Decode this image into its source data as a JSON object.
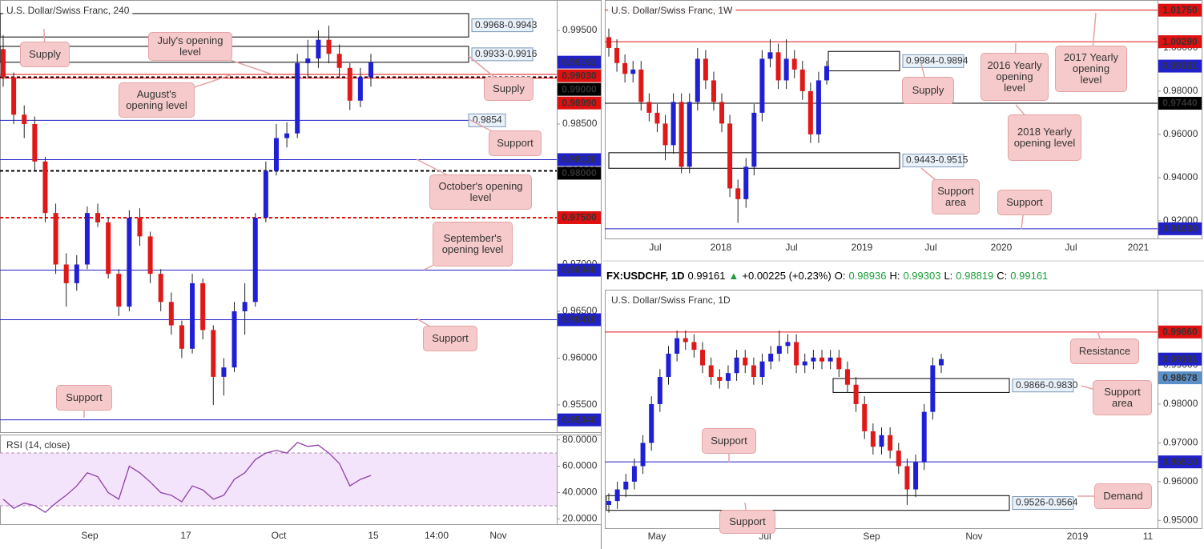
{
  "chart_data": [
    {
      "type": "candlestick",
      "title": "U.S. Dollar/Swiss Franc, 240",
      "up_color": "#1f1fd6",
      "down_color": "#e01818",
      "ylim": [
        0.95209,
        0.99825
      ],
      "yticks": [
        {
          "value": 0.995,
          "label": "0.99500"
        },
        {
          "value": 0.99,
          "label": "0.99000"
        },
        {
          "value": 0.985,
          "label": "0.98500"
        },
        {
          "value": 0.98,
          "label": "0.98000"
        },
        {
          "value": 0.975,
          "label": "0.97500"
        },
        {
          "value": 0.97,
          "label": "0.97000"
        },
        {
          "value": 0.965,
          "label": "0.96500"
        },
        {
          "value": 0.96,
          "label": "0.96000"
        },
        {
          "value": 0.955,
          "label": "0.95500"
        }
      ],
      "x_labels": [
        "Sep",
        "17",
        "Oct",
        "15",
        "14:00",
        "Nov"
      ],
      "ohlc": [
        [
          0.993,
          0.9945,
          0.989,
          0.99
        ],
        [
          0.99,
          0.9905,
          0.985,
          0.986
        ],
        [
          0.986,
          0.987,
          0.9835,
          0.985
        ],
        [
          0.985,
          0.9858,
          0.98,
          0.981
        ],
        [
          0.981,
          0.9815,
          0.9745,
          0.9755
        ],
        [
          0.9755,
          0.9765,
          0.969,
          0.97
        ],
        [
          0.97,
          0.9712,
          0.9655,
          0.968
        ],
        [
          0.968,
          0.971,
          0.9672,
          0.97
        ],
        [
          0.97,
          0.9762,
          0.9695,
          0.9755
        ],
        [
          0.9755,
          0.9765,
          0.974,
          0.9745
        ],
        [
          0.9745,
          0.975,
          0.9685,
          0.969
        ],
        [
          0.969,
          0.9695,
          0.9645,
          0.9655
        ],
        [
          0.9655,
          0.9758,
          0.965,
          0.975
        ],
        [
          0.975,
          0.976,
          0.972,
          0.973
        ],
        [
          0.973,
          0.9735,
          0.968,
          0.969
        ],
        [
          0.969,
          0.9695,
          0.965,
          0.966
        ],
        [
          0.966,
          0.967,
          0.9625,
          0.9635
        ],
        [
          0.9635,
          0.964,
          0.96,
          0.961
        ],
        [
          0.961,
          0.969,
          0.9605,
          0.968
        ],
        [
          0.968,
          0.9685,
          0.962,
          0.963
        ],
        [
          0.963,
          0.9635,
          0.955,
          0.958
        ],
        [
          0.958,
          0.96,
          0.956,
          0.959
        ],
        [
          0.959,
          0.966,
          0.9585,
          0.965
        ],
        [
          0.965,
          0.968,
          0.9625,
          0.966
        ],
        [
          0.966,
          0.9755,
          0.9655,
          0.975
        ],
        [
          0.975,
          0.981,
          0.9745,
          0.98
        ],
        [
          0.98,
          0.985,
          0.9795,
          0.9835
        ],
        [
          0.9835,
          0.9852,
          0.9825,
          0.984
        ],
        [
          0.984,
          0.9925,
          0.9835,
          0.9915
        ],
        [
          0.9915,
          0.994,
          0.99,
          0.992
        ],
        [
          0.992,
          0.995,
          0.991,
          0.994
        ],
        [
          0.994,
          0.9955,
          0.9915,
          0.9925
        ],
        [
          0.9925,
          0.9935,
          0.99,
          0.991
        ],
        [
          0.991,
          0.9915,
          0.9865,
          0.9875
        ],
        [
          0.9875,
          0.991,
          0.9868,
          0.99
        ],
        [
          0.99,
          0.9925,
          0.989,
          0.9916
        ]
      ],
      "levels": [
        {
          "price": 0.99161,
          "label": "0.99161",
          "color": "#2121c9",
          "style": "none"
        },
        {
          "price": 0.9903,
          "label": "0.99030",
          "color": "#e01010",
          "style": "solid"
        },
        {
          "price": 0.99,
          "label": "0.99000",
          "color": "#000000",
          "style": "dashed"
        },
        {
          "price": 0.9899,
          "label": "0.98990",
          "color": "#e01010",
          "style": "solid"
        },
        {
          "price": 0.9812,
          "label": "0.98120",
          "color": "#2121c9",
          "style": "solid"
        },
        {
          "price": 0.98,
          "label": "0.98000",
          "color": "#000000",
          "style": "dashed"
        },
        {
          "price": 0.975,
          "label": "0.97500",
          "color": "#e01010",
          "style": "dashed"
        },
        {
          "price": 0.9694,
          "label": "0.96940",
          "color": "#2121c9",
          "style": "solid"
        },
        {
          "price": 0.9641,
          "label": "0.96410",
          "color": "#2121c9",
          "style": "solid"
        },
        {
          "price": 0.9534,
          "label": "0.95340",
          "color": "#2121c9",
          "style": "solid"
        },
        {
          "price": 0.9854,
          "label": "0.9854",
          "color": "#2121c9",
          "style": "inline"
        }
      ],
      "boxes": [
        {
          "label": "0.9968-0.9943",
          "high": 0.9968,
          "low": 0.9943
        },
        {
          "label": "0.9933-0.9916",
          "high": 0.9933,
          "low": 0.9916
        }
      ],
      "annotations": [
        "Supply",
        "July's opening level",
        "August's opening level",
        "Supply",
        "Support",
        "October's opening level",
        "September's opening level",
        "Support",
        "Support"
      ]
    },
    {
      "type": "line",
      "title": "RSI (14, close)",
      "color": "#8e3fa8",
      "band": [
        30,
        70
      ],
      "ylim": [
        16,
        84
      ],
      "yticks": [
        {
          "value": 80,
          "label": "80.0000"
        },
        {
          "value": 60,
          "label": "60.0000"
        },
        {
          "value": 40,
          "label": "40.0000"
        },
        {
          "value": 20,
          "label": "20.0000"
        }
      ],
      "values": [
        35,
        28,
        32,
        30,
        25,
        32,
        38,
        45,
        55,
        52,
        40,
        35,
        60,
        55,
        48,
        40,
        38,
        33,
        45,
        42,
        35,
        38,
        50,
        55,
        65,
        70,
        72,
        70,
        78,
        75,
        76,
        70,
        62,
        45,
        50,
        53
      ]
    },
    {
      "type": "candlestick",
      "title": "U.S. Dollar/Swiss Franc, 1W",
      "up_color": "#1f1fd6",
      "down_color": "#e01818",
      "ylim": [
        0.9118,
        1.0222
      ],
      "yticks": [
        {
          "value": 1.0,
          "label": "1.00000"
        },
        {
          "value": 0.98,
          "label": "0.98000"
        },
        {
          "value": 0.96,
          "label": "0.96000"
        },
        {
          "value": 0.94,
          "label": "0.94000"
        },
        {
          "value": 0.92,
          "label": "0.92000"
        }
      ],
      "x_labels": [
        "Jul",
        "2018",
        "Jul",
        "2019",
        "Jul",
        "2020",
        "Jul",
        "2021"
      ],
      "ohlc": [
        [
          1.005,
          1.009,
          0.996,
          1.0
        ],
        [
          1.0,
          1.004,
          0.989,
          0.993
        ],
        [
          0.993,
          0.997,
          0.984,
          0.988
        ],
        [
          0.988,
          0.994,
          0.984,
          0.99
        ],
        [
          0.99,
          0.994,
          0.971,
          0.975
        ],
        [
          0.975,
          0.979,
          0.966,
          0.97
        ],
        [
          0.97,
          0.974,
          0.961,
          0.965
        ],
        [
          0.965,
          0.969,
          0.948,
          0.955
        ],
        [
          0.955,
          0.979,
          0.951,
          0.975
        ],
        [
          0.975,
          0.979,
          0.942,
          0.945
        ],
        [
          0.945,
          0.979,
          0.942,
          0.975
        ],
        [
          0.975,
          1.0,
          0.971,
          0.995
        ],
        [
          0.995,
          0.999,
          0.981,
          0.985
        ],
        [
          0.985,
          0.989,
          0.971,
          0.975
        ],
        [
          0.975,
          0.979,
          0.961,
          0.965
        ],
        [
          0.965,
          0.969,
          0.931,
          0.935
        ],
        [
          0.935,
          0.939,
          0.919,
          0.93
        ],
        [
          0.93,
          0.949,
          0.926,
          0.945
        ],
        [
          0.945,
          0.974,
          0.941,
          0.97
        ],
        [
          0.97,
          0.999,
          0.966,
          0.995
        ],
        [
          0.995,
          1.004,
          0.991,
          0.998
        ],
        [
          0.998,
          1.002,
          0.981,
          0.985
        ],
        [
          0.985,
          1.004,
          0.981,
          0.995
        ],
        [
          0.995,
          0.999,
          0.986,
          0.99
        ],
        [
          0.99,
          0.994,
          0.976,
          0.98
        ],
        [
          0.98,
          0.984,
          0.956,
          0.96
        ],
        [
          0.96,
          0.989,
          0.956,
          0.985
        ],
        [
          0.985,
          0.994,
          0.983,
          0.9916
        ]
      ],
      "levels": [
        {
          "price": 1.0175,
          "label": "1.01750",
          "color": "#e01010",
          "style": "solid"
        },
        {
          "price": 1.0029,
          "label": "1.00290",
          "color": "#e01010",
          "style": "solid"
        },
        {
          "price": 0.99161,
          "label": "0.99161",
          "color": "#2121c9",
          "style": "none"
        },
        {
          "price": 0.9744,
          "label": "0.97440",
          "color": "#000000",
          "style": "solid"
        },
        {
          "price": 0.9163,
          "label": "0.91630",
          "color": "#2121c9",
          "style": "solid"
        }
      ],
      "boxes": [
        {
          "label": "0.9984-0.9894",
          "high": 0.9984,
          "low": 0.9894
        },
        {
          "label": "0.9443-0.9515",
          "high": 0.9515,
          "low": 0.9443
        }
      ],
      "annotations": [
        "2016 Yearly opening level",
        "2017 Yearly opening level",
        "Supply",
        "2018 Yearly opening level",
        "Support area",
        "Support"
      ]
    },
    {
      "type": "candlestick",
      "title": "U.S. Dollar/Swiss Franc, 1D",
      "up_color": "#1f1fd6",
      "down_color": "#e01818",
      "header": [
        {
          "text": "FX:USDCHF, 1D",
          "color": "#000000"
        },
        {
          "text": "0.99161",
          "color": "#000000"
        },
        {
          "text": "▲",
          "color": "#1e9e3a"
        },
        {
          "text": "+0.00225 (+0.23%)",
          "color": "#000000"
        },
        {
          "text": "O:",
          "color": "#000000"
        },
        {
          "text": "0.98936",
          "color": "#1e9e3a"
        },
        {
          "text": "H:",
          "color": "#000000"
        },
        {
          "text": "0.99303",
          "color": "#1e9e3a"
        },
        {
          "text": "L:",
          "color": "#000000"
        },
        {
          "text": "0.98819",
          "color": "#1e9e3a"
        },
        {
          "text": "C:",
          "color": "#000000"
        },
        {
          "text": "0.99161",
          "color": "#1e9e3a"
        }
      ],
      "ylim": [
        0.948,
        1.0095
      ],
      "yticks": [
        {
          "value": 0.99,
          "label": "0.99000"
        },
        {
          "value": 0.98,
          "label": "0.98000"
        },
        {
          "value": 0.97,
          "label": "0.97000"
        },
        {
          "value": 0.96,
          "label": "0.96000"
        },
        {
          "value": 0.95,
          "label": "0.95000"
        }
      ],
      "x_labels": [
        "May",
        "Jul",
        "Sep",
        "Nov",
        "2019",
        "11"
      ],
      "ohlc": [
        [
          0.954,
          0.957,
          0.952,
          0.955
        ],
        [
          0.955,
          0.96,
          0.953,
          0.958
        ],
        [
          0.958,
          0.962,
          0.956,
          0.96
        ],
        [
          0.96,
          0.966,
          0.958,
          0.964
        ],
        [
          0.964,
          0.972,
          0.962,
          0.97
        ],
        [
          0.97,
          0.982,
          0.968,
          0.98
        ],
        [
          0.98,
          0.989,
          0.978,
          0.987
        ],
        [
          0.987,
          0.995,
          0.985,
          0.993
        ],
        [
          0.993,
          0.999,
          0.991,
          0.997
        ],
        [
          0.997,
          0.999,
          0.994,
          0.996
        ],
        [
          0.996,
          0.998,
          0.992,
          0.994
        ],
        [
          0.994,
          0.996,
          0.988,
          0.99
        ],
        [
          0.99,
          0.992,
          0.985,
          0.987
        ],
        [
          0.987,
          0.989,
          0.984,
          0.986
        ],
        [
          0.986,
          0.99,
          0.984,
          0.988
        ],
        [
          0.988,
          0.994,
          0.986,
          0.992
        ],
        [
          0.992,
          0.994,
          0.988,
          0.99
        ],
        [
          0.99,
          0.992,
          0.985,
          0.987
        ],
        [
          0.987,
          0.993,
          0.985,
          0.991
        ],
        [
          0.991,
          0.995,
          0.989,
          0.993
        ],
        [
          0.993,
          0.999,
          0.991,
          0.995
        ],
        [
          0.995,
          0.998,
          0.993,
          0.996
        ],
        [
          0.996,
          0.998,
          0.988,
          0.99
        ],
        [
          0.99,
          0.993,
          0.988,
          0.991
        ],
        [
          0.991,
          0.994,
          0.989,
          0.992
        ],
        [
          0.992,
          0.994,
          0.989,
          0.991
        ],
        [
          0.991,
          0.994,
          0.989,
          0.992
        ],
        [
          0.992,
          0.994,
          0.987,
          0.989
        ],
        [
          0.989,
          0.991,
          0.983,
          0.985
        ],
        [
          0.985,
          0.987,
          0.978,
          0.98
        ],
        [
          0.98,
          0.982,
          0.971,
          0.973
        ],
        [
          0.973,
          0.975,
          0.967,
          0.969
        ],
        [
          0.969,
          0.974,
          0.967,
          0.972
        ],
        [
          0.972,
          0.974,
          0.966,
          0.968
        ],
        [
          0.968,
          0.97,
          0.962,
          0.964
        ],
        [
          0.964,
          0.966,
          0.954,
          0.958
        ],
        [
          0.958,
          0.967,
          0.956,
          0.965
        ],
        [
          0.965,
          0.98,
          0.963,
          0.978
        ],
        [
          0.978,
          0.992,
          0.976,
          0.99
        ],
        [
          0.99,
          0.993,
          0.988,
          0.9916
        ]
      ],
      "levels": [
        {
          "price": 0.9986,
          "label": "0.99860",
          "color": "#e01010",
          "style": "solid"
        },
        {
          "price": 0.99161,
          "label": "0.99161",
          "color": "#2121c9",
          "style": "none"
        },
        {
          "price": 0.98678,
          "label": "0.98678",
          "color": "#5b8fc7",
          "style": "none"
        },
        {
          "price": 0.9651,
          "label": "0.96510",
          "color": "#2121c9",
          "style": "solid"
        }
      ],
      "boxes": [
        {
          "label": "0.9866-0.9830",
          "high": 0.9866,
          "low": 0.983
        },
        {
          "label": "0.9526-0.9564",
          "high": 0.9564,
          "low": 0.9526
        }
      ],
      "annotations": [
        "Resistance",
        "Support area",
        "Support",
        "Demand",
        "Support"
      ]
    }
  ]
}
